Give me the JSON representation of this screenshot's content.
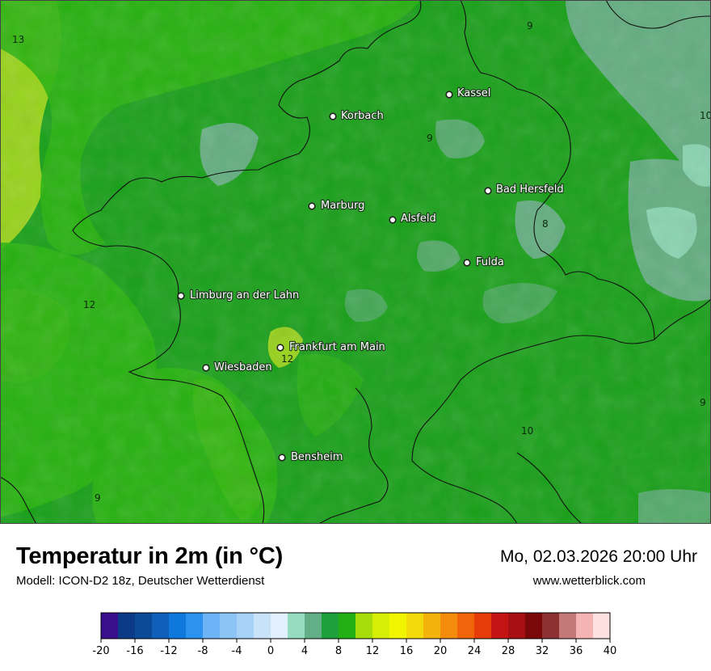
{
  "title": "Temperatur in 2m (in °C)",
  "model": "Modell: ICON-D2 18z, Deutscher Wetterdienst",
  "datetime": "Mo, 02.03.2026 20:00 Uhr",
  "website": "www.wetterblick.com",
  "colors": {
    "land_main": "#19a019",
    "land_warm": "#29b30f",
    "land_cool": "#68ae86",
    "land_cold": "#8cd6b4",
    "land_hot": "#9fd61a",
    "border": "#111111"
  },
  "cities": [
    {
      "name": "Kassel"
    },
    {
      "name": "Korbach"
    },
    {
      "name": "Bad Hersfeld"
    },
    {
      "name": "Marburg"
    },
    {
      "name": "Alsfeld"
    },
    {
      "name": "Fulda"
    },
    {
      "name": "Limburg an der Lahn"
    },
    {
      "name": "Frankfurt am Main"
    },
    {
      "name": "Wiesbaden"
    },
    {
      "name": "Bensheim"
    }
  ],
  "isolines": [
    {
      "value": "13"
    },
    {
      "value": "9"
    },
    {
      "value": "10"
    },
    {
      "value": "9"
    },
    {
      "value": "8"
    },
    {
      "value": "12"
    },
    {
      "value": "12"
    },
    {
      "value": "9"
    },
    {
      "value": "10"
    },
    {
      "value": "9"
    }
  ],
  "legend": {
    "colors": [
      "#3a0f8c",
      "#0b3b86",
      "#0b4a96",
      "#0f5fb8",
      "#0f78dc",
      "#2c92f0",
      "#6db4f6",
      "#8cc4f6",
      "#a6d2f8",
      "#c8e2fa",
      "#e2efff",
      "#96dcc0",
      "#62ae86",
      "#1ea03c",
      "#23b014",
      "#a6dc0a",
      "#d6ee05",
      "#f2f500",
      "#f4d90a",
      "#f2b40a",
      "#f28c0a",
      "#f2640a",
      "#e63c0a",
      "#c41414",
      "#a80f14",
      "#7a0808",
      "#8c3232",
      "#c47878",
      "#f4b4b4",
      "#fde0e0"
    ],
    "ticks": [
      "-20",
      "-16",
      "-12",
      "-8",
      "-4",
      "0",
      "4",
      "8",
      "12",
      "16",
      "20",
      "24",
      "28",
      "32",
      "36",
      "40"
    ]
  }
}
